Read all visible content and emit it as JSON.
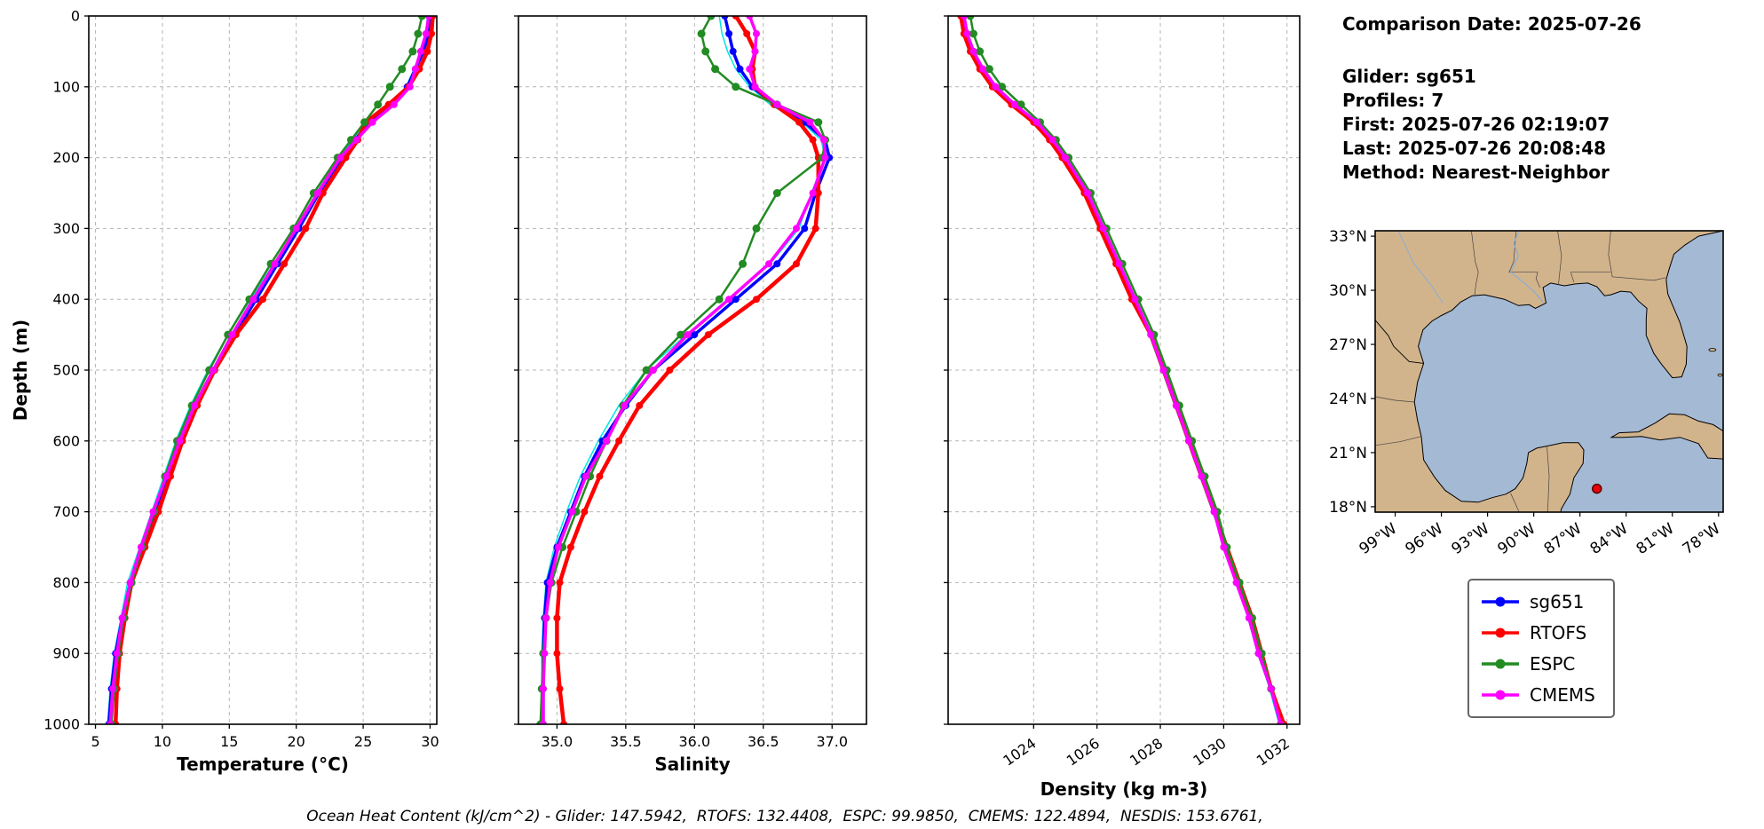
{
  "info_panel": {
    "comparison_date": "Comparison Date: 2025-07-26",
    "glider": "Glider: sg651",
    "profiles": "Profiles: 7",
    "first": "First: 2025-07-26 02:19:07",
    "last": "Last: 2025-07-26 20:08:48",
    "method": "Method: Nearest-Neighbor"
  },
  "footer_text": "Ocean Heat Content (kJ/cm^2) - Glider: 147.5942,  RTOFS: 132.4408,  ESPC: 99.9850,  CMEMS: 122.4894,  NESDIS: 153.6761,",
  "depth_axis": {
    "label": "Depth (m)",
    "lim": [
      0,
      1000
    ],
    "ticks": [
      0,
      100,
      200,
      300,
      400,
      500,
      600,
      700,
      800,
      900,
      1000
    ]
  },
  "legend": {
    "items": [
      {
        "label": "sg651",
        "color": "#0000ff"
      },
      {
        "label": "RTOFS",
        "color": "#ff0000"
      },
      {
        "label": "ESPC",
        "color": "#228b22"
      },
      {
        "label": "CMEMS",
        "color": "#ff00ff"
      }
    ]
  },
  "map": {
    "extent": {
      "lon": [
        -100.3,
        -77.7
      ],
      "lat": [
        17.7,
        33.3
      ]
    },
    "ocean_color": "#a4b9d4",
    "land_color": "#d2b48c",
    "lat_ticks": [
      {
        "value": 18,
        "label": "18°N"
      },
      {
        "value": 21,
        "label": "21°N"
      },
      {
        "value": 24,
        "label": "24°N"
      },
      {
        "value": 27,
        "label": "27°N"
      },
      {
        "value": 30,
        "label": "30°N"
      },
      {
        "value": 33,
        "label": "33°N"
      }
    ],
    "lon_ticks": [
      {
        "value": -99,
        "label": "99°W"
      },
      {
        "value": -96,
        "label": "96°W"
      },
      {
        "value": -93,
        "label": "93°W"
      },
      {
        "value": -90,
        "label": "90°W"
      },
      {
        "value": -87,
        "label": "87°W"
      },
      {
        "value": -84,
        "label": "84°W"
      },
      {
        "value": -81,
        "label": "81°W"
      },
      {
        "value": -78,
        "label": "78°W"
      }
    ],
    "marker": {
      "lon": -85.9,
      "lat": 19.0,
      "color": "#e8000b"
    }
  },
  "chart_data": [
    {
      "type": "line",
      "id": "temperature",
      "xlabel": "Temperature (°C)",
      "ylabel": "Depth (m)",
      "ylim": [
        0,
        1000
      ],
      "xlim": [
        4.5,
        30.5
      ],
      "xticks": [
        5,
        10,
        15,
        20,
        25,
        30
      ],
      "xtick_labels": [
        "5",
        "10",
        "15",
        "20",
        "25",
        "30"
      ],
      "rotate_xticks": false,
      "grid": true,
      "depths": [
        0,
        25,
        50,
        75,
        100,
        125,
        150,
        175,
        200,
        250,
        300,
        350,
        400,
        450,
        500,
        550,
        600,
        650,
        700,
        750,
        800,
        850,
        900,
        950,
        1000
      ],
      "series": [
        {
          "name": "NESDIS",
          "color": "#00e5e5",
          "lw": 1.5,
          "marker_r": 0,
          "values": [
            29.8,
            29.7,
            29.3,
            28.8,
            28.2,
            27.0,
            25.3,
            24.2,
            23.2,
            21.5,
            20.0,
            18.3,
            16.6,
            14.9,
            13.4,
            12.1,
            11.0,
            10.1,
            9.2,
            8.3,
            7.4,
            6.9,
            6.4,
            6.1,
            5.9
          ]
        },
        {
          "name": "sg651",
          "color": "#0000ff",
          "lw": 3.5,
          "marker_r": 4,
          "values": [
            30.0,
            29.9,
            29.5,
            28.9,
            28.3,
            27.1,
            25.5,
            24.4,
            23.4,
            21.7,
            20.2,
            18.6,
            17.0,
            15.4,
            13.9,
            12.5,
            11.4,
            10.4,
            9.4,
            8.5,
            7.6,
            7.0,
            6.5,
            6.2,
            6.0
          ]
        },
        {
          "name": "RTOFS",
          "color": "#ff0000",
          "lw": 4.5,
          "marker_r": 4,
          "values": [
            30.2,
            30.1,
            29.8,
            29.2,
            28.4,
            26.9,
            25.2,
            24.6,
            23.7,
            22.0,
            20.7,
            19.1,
            17.5,
            15.5,
            13.9,
            12.6,
            11.5,
            10.6,
            9.7,
            8.7,
            7.7,
            7.2,
            6.8,
            6.6,
            6.5
          ]
        },
        {
          "name": "ESPC",
          "color": "#228b22",
          "lw": 2.5,
          "marker_r": 4.5,
          "values": [
            29.4,
            29.1,
            28.7,
            27.9,
            27.0,
            26.1,
            25.1,
            24.1,
            23.1,
            21.3,
            19.8,
            18.1,
            16.5,
            14.9,
            13.5,
            12.2,
            11.1,
            10.2,
            9.4,
            8.5,
            7.7,
            7.1,
            6.7,
            6.4,
            6.2
          ]
        },
        {
          "name": "CMEMS",
          "color": "#ff00ff",
          "lw": 3.5,
          "marker_r": 4,
          "values": [
            29.9,
            29.7,
            29.3,
            28.9,
            28.5,
            27.3,
            25.7,
            24.5,
            23.3,
            21.6,
            20.0,
            18.4,
            16.8,
            15.2,
            13.8,
            12.4,
            11.3,
            10.3,
            9.3,
            8.4,
            7.6,
            7.0,
            6.6,
            6.3,
            6.1
          ]
        }
      ]
    },
    {
      "type": "line",
      "id": "salinity",
      "xlabel": "Salinity",
      "ylabel": "Depth (m)",
      "ylim": [
        0,
        1000
      ],
      "xlim": [
        34.72,
        37.25
      ],
      "xticks": [
        35.0,
        35.5,
        36.0,
        36.5,
        37.0
      ],
      "xtick_labels": [
        "35.0",
        "35.5",
        "36.0",
        "36.5",
        "37.0"
      ],
      "rotate_xticks": false,
      "grid": true,
      "depths": [
        0,
        25,
        50,
        75,
        100,
        125,
        150,
        175,
        200,
        250,
        300,
        350,
        400,
        450,
        500,
        550,
        600,
        650,
        700,
        750,
        800,
        850,
        900,
        950,
        1000
      ],
      "series": [
        {
          "name": "NESDIS",
          "color": "#00e5e5",
          "lw": 1.5,
          "marker_r": 0,
          "values": [
            36.18,
            36.2,
            36.24,
            36.3,
            36.4,
            36.55,
            36.78,
            36.92,
            36.95,
            36.85,
            36.76,
            36.55,
            36.24,
            35.94,
            35.65,
            35.45,
            35.3,
            35.17,
            35.07,
            34.98,
            34.92,
            34.9,
            34.89,
            34.89,
            34.89
          ]
        },
        {
          "name": "sg651",
          "color": "#0000ff",
          "lw": 3.5,
          "marker_r": 4,
          "values": [
            36.22,
            36.25,
            36.28,
            36.33,
            36.42,
            36.58,
            36.8,
            36.95,
            36.98,
            36.88,
            36.8,
            36.6,
            36.3,
            36.0,
            35.7,
            35.5,
            35.33,
            35.2,
            35.1,
            35.0,
            34.93,
            34.91,
            34.9,
            34.9,
            34.9
          ]
        },
        {
          "name": "RTOFS",
          "color": "#ff0000",
          "lw": 4.5,
          "marker_r": 4,
          "values": [
            36.3,
            36.38,
            36.44,
            36.42,
            36.44,
            36.58,
            36.76,
            36.86,
            36.9,
            36.9,
            36.88,
            36.74,
            36.45,
            36.1,
            35.82,
            35.6,
            35.45,
            35.31,
            35.2,
            35.1,
            35.02,
            35.0,
            35.0,
            35.02,
            35.05
          ]
        },
        {
          "name": "ESPC",
          "color": "#228b22",
          "lw": 2.5,
          "marker_r": 4.5,
          "values": [
            36.12,
            36.05,
            36.08,
            36.15,
            36.3,
            36.6,
            36.9,
            36.95,
            36.93,
            36.6,
            36.45,
            36.35,
            36.18,
            35.9,
            35.65,
            35.48,
            35.36,
            35.24,
            35.14,
            35.04,
            34.96,
            34.92,
            34.9,
            34.89,
            34.88
          ]
        },
        {
          "name": "CMEMS",
          "color": "#ff00ff",
          "lw": 3.5,
          "marker_r": 4,
          "values": [
            36.4,
            36.45,
            36.44,
            36.4,
            36.44,
            36.6,
            36.84,
            36.94,
            36.95,
            36.86,
            36.74,
            36.54,
            36.25,
            35.95,
            35.7,
            35.49,
            35.36,
            35.21,
            35.11,
            35.01,
            34.95,
            34.92,
            34.91,
            34.9,
            34.9
          ]
        }
      ]
    },
    {
      "type": "line",
      "id": "density",
      "xlabel": "Density (kg m-3)",
      "ylabel": "Depth (m)",
      "ylim": [
        0,
        1000
      ],
      "xlim": [
        1021.3,
        1032.4
      ],
      "xticks": [
        1024,
        1026,
        1028,
        1030,
        1032
      ],
      "xtick_labels": [
        "1024",
        "1026",
        "1028",
        "1030",
        "1032"
      ],
      "rotate_xticks": true,
      "grid": true,
      "depths": [
        0,
        25,
        50,
        75,
        100,
        125,
        150,
        175,
        200,
        250,
        300,
        350,
        400,
        450,
        500,
        550,
        600,
        650,
        700,
        750,
        800,
        850,
        900,
        950,
        1000
      ],
      "series": [
        {
          "name": "NESDIS",
          "color": "#00e5e5",
          "lw": 1.5,
          "marker_r": 0,
          "values": [
            1021.8,
            1021.9,
            1022.1,
            1022.4,
            1022.8,
            1023.4,
            1024.0,
            1024.55,
            1024.95,
            1025.65,
            1026.15,
            1026.65,
            1027.15,
            1027.65,
            1028.05,
            1028.45,
            1028.85,
            1029.25,
            1029.65,
            1030.05,
            1030.45,
            1030.8,
            1031.1,
            1031.45,
            1031.75
          ]
        },
        {
          "name": "sg651",
          "color": "#0000ff",
          "lw": 3.5,
          "marker_r": 4,
          "values": [
            1021.8,
            1021.9,
            1022.1,
            1022.4,
            1022.8,
            1023.4,
            1024.1,
            1024.6,
            1025.0,
            1025.7,
            1026.2,
            1026.7,
            1027.2,
            1027.7,
            1028.1,
            1028.5,
            1028.9,
            1029.3,
            1029.7,
            1030.1,
            1030.5,
            1030.8,
            1031.1,
            1031.5,
            1031.8
          ]
        },
        {
          "name": "RTOFS",
          "color": "#ff0000",
          "lw": 4.5,
          "marker_r": 4,
          "values": [
            1021.7,
            1021.8,
            1022.0,
            1022.3,
            1022.7,
            1023.3,
            1024.0,
            1024.5,
            1024.9,
            1025.6,
            1026.1,
            1026.6,
            1027.1,
            1027.7,
            1028.1,
            1028.5,
            1028.9,
            1029.3,
            1029.7,
            1030.1,
            1030.5,
            1030.9,
            1031.2,
            1031.5,
            1031.9
          ]
        },
        {
          "name": "ESPC",
          "color": "#228b22",
          "lw": 2.5,
          "marker_r": 4.5,
          "values": [
            1022.0,
            1022.1,
            1022.3,
            1022.6,
            1023.0,
            1023.6,
            1024.2,
            1024.7,
            1025.1,
            1025.8,
            1026.3,
            1026.8,
            1027.3,
            1027.8,
            1028.2,
            1028.6,
            1029.0,
            1029.4,
            1029.8,
            1030.1,
            1030.5,
            1030.9,
            1031.2,
            1031.5,
            1031.8
          ]
        },
        {
          "name": "CMEMS",
          "color": "#ff00ff",
          "lw": 3.5,
          "marker_r": 4,
          "values": [
            1021.8,
            1021.9,
            1022.1,
            1022.4,
            1022.8,
            1023.4,
            1024.1,
            1024.6,
            1025.0,
            1025.7,
            1026.2,
            1026.7,
            1027.2,
            1027.7,
            1028.1,
            1028.5,
            1028.9,
            1029.3,
            1029.7,
            1030.0,
            1030.4,
            1030.8,
            1031.1,
            1031.5,
            1031.8
          ]
        }
      ]
    }
  ]
}
